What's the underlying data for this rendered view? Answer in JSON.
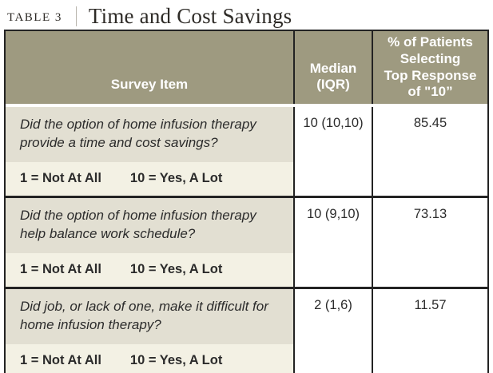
{
  "title": {
    "tag": "TABLE 3",
    "heading": "Time and Cost Savings"
  },
  "table": {
    "header": {
      "survey_item": "Survey Item",
      "median_iqr": "Median\n(IQR)",
      "pct_top": "% of Patients\nSelecting\nTop Response\nof \"10”"
    },
    "rows": [
      {
        "question": "Did the option of home infusion therapy provide a time and cost savings?",
        "scale_low": "1 = Not At All",
        "scale_high": "10 = Yes, A Lot",
        "median_iqr": "10 (10,10)",
        "pct_top": "85.45"
      },
      {
        "question": "Did the option of home infusion therapy help balance work schedule?",
        "scale_low": "1 = Not At All",
        "scale_high": "10 = Yes, A Lot",
        "median_iqr": "10 (9,10)",
        "pct_top": "73.13"
      },
      {
        "question": "Did job, or lack of one, make it difficult for home infusion therapy?",
        "scale_low": "1 = Not At All",
        "scale_high": "10 = Yes, A Lot",
        "median_iqr": "2 (1,6)",
        "pct_top": "11.57"
      }
    ]
  },
  "colors": {
    "header_bg": "#9e9a80",
    "question_bg": "#e2dfd2",
    "scale_bg": "#f3f1e4",
    "border": "#232323",
    "header_text": "#ffffff",
    "body_text": "#2b2b2b"
  }
}
